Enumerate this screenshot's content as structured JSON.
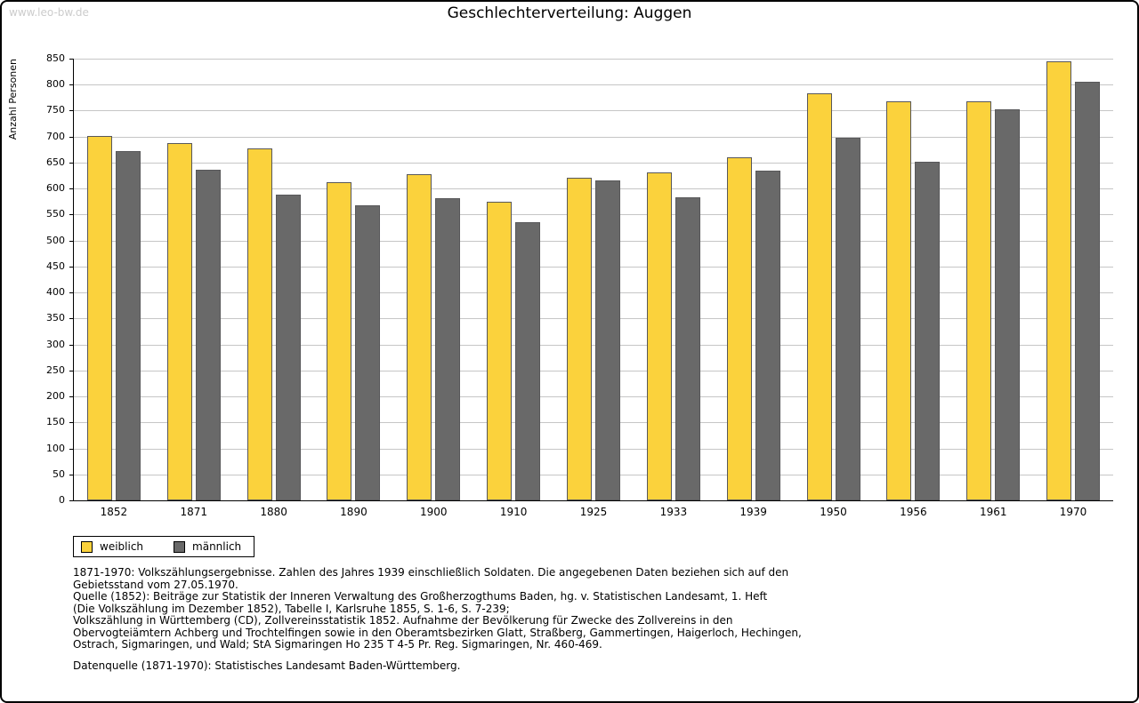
{
  "header": {
    "watermark": "www.leo-bw.de"
  },
  "colors": {
    "weiblich": "#FBD23C",
    "maennlich": "#696969",
    "bar_border": "#58585A",
    "grid": "#C6C6C6",
    "watermark": "#CCCCCC"
  },
  "chart_data": {
    "type": "bar",
    "title": "Geschlechterverteilung: Auggen",
    "ylabel": "Anzahl Personen",
    "xlabel": "",
    "ylim": [
      0,
      850
    ],
    "ytick_step": 50,
    "grid": "horizontal",
    "legend_position": "bottom-left",
    "categories": [
      "1852",
      "1871",
      "1880",
      "1890",
      "1900",
      "1910",
      "1925",
      "1933",
      "1939",
      "1950",
      "1956",
      "1961",
      "1970"
    ],
    "series": [
      {
        "name": "weiblich",
        "values": [
          701,
          688,
          677,
          613,
          628,
          575,
          620,
          631,
          660,
          783,
          768,
          768,
          845
        ]
      },
      {
        "name": "männlich",
        "values": [
          672,
          636,
          589,
          568,
          581,
          536,
          616,
          584,
          635,
          697,
          652,
          752,
          805
        ]
      }
    ]
  },
  "notes": {
    "block1": "1871-1970: Volkszählungsergebnisse. Zahlen des Jahres 1939 einschließlich Soldaten. Die angegebenen Daten beziehen sich auf den\nGebietsstand vom 27.05.1970.\nQuelle (1852): Beiträge zur Statistik der Inneren Verwaltung des Großherzogthums Baden, hg. v. Statistischen Landesamt, 1. Heft\n(Die Volkszählung im Dezember 1852), Tabelle I, Karlsruhe 1855, S. 1-6, S. 7-239;\nVolkszählung in Württemberg (CD), Zollvereinsstatistik 1852. Aufnahme der Bevölkerung für Zwecke des Zollvereins in den\nObervogteiämtern Achberg und Trochtelfingen sowie in den Oberamtsbezirken Glatt, Straßberg, Gammertingen, Haigerloch, Hechingen,\nOstrach, Sigmaringen, und Wald; StA Sigmaringen Ho 235 T 4-5 Pr. Reg. Sigmaringen, Nr. 460-469.",
    "block2": "Datenquelle (1871-1970): Statistisches Landesamt Baden-Württemberg."
  }
}
